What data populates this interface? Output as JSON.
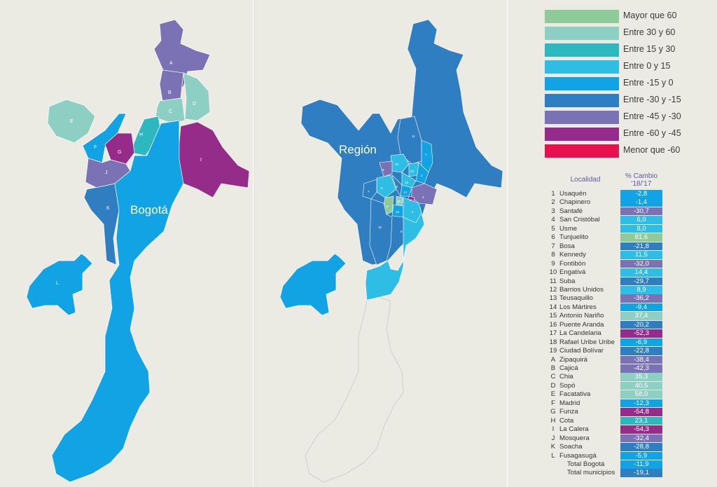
{
  "legend": [
    {
      "label": "Mayor que 60",
      "color": "#8fcb9a"
    },
    {
      "label": "Entre 30 y 60",
      "color": "#8ecfc4"
    },
    {
      "label": "Entre 15 y 30",
      "color": "#2db7bf"
    },
    {
      "label": "Entre 0 y 15",
      "color": "#2ebde5"
    },
    {
      "label": "Entre -15 y 0",
      "color": "#11a3e4"
    },
    {
      "label": "Entre -30 y -15",
      "color": "#2f7ec2"
    },
    {
      "label": "Entre -45 y -30",
      "color": "#7b72b6"
    },
    {
      "label": "Entre -60 y -45",
      "color": "#952c8a"
    },
    {
      "label": "Menor que -60",
      "color": "#e8114f"
    }
  ],
  "map_labels": {
    "bogota": "Bogotá",
    "region": "Región"
  },
  "region_letters": [
    "A",
    "B",
    "C",
    "D",
    "E",
    "F",
    "G",
    "H",
    "I",
    "J",
    "K",
    "L"
  ],
  "locality_numbers": [
    "1",
    "2",
    "3",
    "4",
    "5",
    "6",
    "7",
    "8",
    "9",
    "10",
    "11",
    "12",
    "13",
    "14",
    "15",
    "16",
    "17",
    "18",
    "19"
  ],
  "table": {
    "header_name": "Localidad",
    "header_value": "% Cambio '18/'17",
    "rows": [
      {
        "id": "1",
        "name": "Usaquén",
        "value": "-2,8",
        "color": "#11a3e4"
      },
      {
        "id": "2",
        "name": "Chapinero",
        "value": "-1,4",
        "color": "#11a3e4"
      },
      {
        "id": "3",
        "name": "Santafé",
        "value": "-30,7",
        "color": "#7b72b6"
      },
      {
        "id": "4",
        "name": "San Cristóbal",
        "value": "6,0",
        "color": "#2ebde5"
      },
      {
        "id": "5",
        "name": "Usme",
        "value": "8,0",
        "color": "#2ebde5"
      },
      {
        "id": "6",
        "name": "Tunjuelito",
        "value": "81,6",
        "color": "#8fcb9a"
      },
      {
        "id": "7",
        "name": "Bosa",
        "value": "-21,8",
        "color": "#2f7ec2"
      },
      {
        "id": "8",
        "name": "Kennedy",
        "value": "11,5",
        "color": "#2ebde5"
      },
      {
        "id": "9",
        "name": "Fontibón",
        "value": "-32,0",
        "color": "#7b72b6"
      },
      {
        "id": "10",
        "name": "Engativá",
        "value": "14,4",
        "color": "#2ebde5"
      },
      {
        "id": "11",
        "name": "Suba",
        "value": "-29,7",
        "color": "#2f7ec2"
      },
      {
        "id": "12",
        "name": "Barrios Unidos",
        "value": "8,9",
        "color": "#2ebde5"
      },
      {
        "id": "13",
        "name": "Teusaquillo",
        "value": "-36,2",
        "color": "#7b72b6"
      },
      {
        "id": "14",
        "name": "Los Mártires",
        "value": "-9,4",
        "color": "#11a3e4"
      },
      {
        "id": "15",
        "name": "Antonio Nariño",
        "value": "37,4",
        "color": "#8ecfc4"
      },
      {
        "id": "16",
        "name": "Puente Aranda",
        "value": "-20,2",
        "color": "#2f7ec2"
      },
      {
        "id": "17",
        "name": "La Candelaria",
        "value": "-52,3",
        "color": "#952c8a"
      },
      {
        "id": "18",
        "name": "Rafael Uribe Uribe",
        "value": "-6,9",
        "color": "#11a3e4"
      },
      {
        "id": "19",
        "name": "Ciudad Bolívar",
        "value": "-22,8",
        "color": "#2f7ec2"
      },
      {
        "id": "A",
        "name": "Zipaquirá",
        "value": "-38,4",
        "color": "#7b72b6"
      },
      {
        "id": "B",
        "name": "Cajicá",
        "value": "-42,3",
        "color": "#7b72b6"
      },
      {
        "id": "C",
        "name": "Chia",
        "value": "35,3",
        "color": "#8ecfc4"
      },
      {
        "id": "D",
        "name": "Sopó",
        "value": "40,5",
        "color": "#8ecfc4"
      },
      {
        "id": "E",
        "name": "Facatativa",
        "value": "58,0",
        "color": "#8ecfc4"
      },
      {
        "id": "F",
        "name": "Madrid",
        "value": "-12,3",
        "color": "#11a3e4"
      },
      {
        "id": "G",
        "name": "Funza",
        "value": "-54,8",
        "color": "#952c8a"
      },
      {
        "id": "H",
        "name": "Cota",
        "value": "23,1",
        "color": "#2db7bf"
      },
      {
        "id": "I",
        "name": "La Calera",
        "value": "-54,3",
        "color": "#952c8a"
      },
      {
        "id": "J",
        "name": "Mosquera",
        "value": "-32,4",
        "color": "#7b72b6"
      },
      {
        "id": "K",
        "name": "Soacha",
        "value": "-28,8",
        "color": "#2f7ec2"
      },
      {
        "id": "L",
        "name": "Fusagasugá",
        "value": "-5,9",
        "color": "#11a3e4"
      },
      {
        "id": "",
        "name": "Total Bogotá",
        "value": "-11,9",
        "color": "#11a3e4"
      },
      {
        "id": "",
        "name": "Total municipios",
        "value": "-19,1",
        "color": "#2f7ec2"
      }
    ]
  }
}
